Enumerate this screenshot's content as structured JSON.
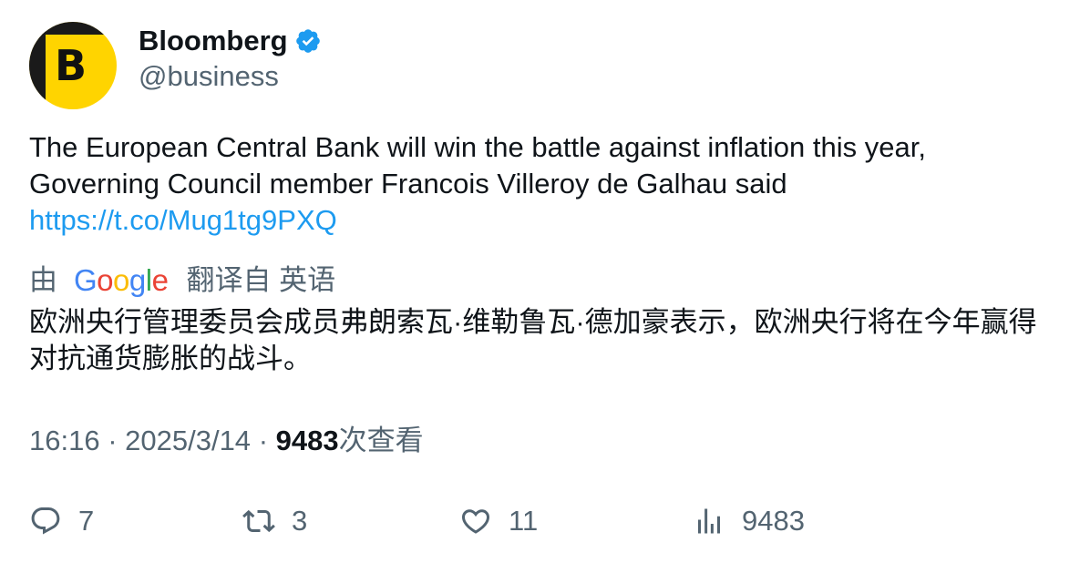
{
  "author": {
    "display_name": "Bloomberg",
    "handle": "@business",
    "avatar_letter": "B",
    "verified": true
  },
  "tweet": {
    "text_line1": "The European Central Bank will win the battle against inflation this year,",
    "text_line2": "Governing Council member Francois Villeroy de Galhau said",
    "link": "https://t.co/Mug1tg9PXQ"
  },
  "translation": {
    "prefix": "由",
    "google_letters": [
      "G",
      "o",
      "o",
      "g",
      "l",
      "e"
    ],
    "suffix": "翻译自 英语",
    "text": "欧洲央行管理委员会成员弗朗索瓦·维勒鲁瓦·德加豪表示，欧洲央行将在今年赢得对抗通货膨胀的战斗。"
  },
  "meta": {
    "time": "16:16",
    "separator": "·",
    "date": "2025/3/14",
    "views_count": "9483",
    "views_label": "次查看"
  },
  "actions": {
    "replies": "7",
    "retweets": "3",
    "likes": "11",
    "views": "9483"
  },
  "colors": {
    "text_primary": "#0f1419",
    "text_secondary": "#536471",
    "link": "#1d9bf0",
    "verified": "#1d9bf0",
    "avatar_bg": "#ffd400"
  },
  "icons": {
    "reply": "reply-icon",
    "retweet": "retweet-icon",
    "like": "heart-icon",
    "views": "views-chart-icon",
    "verified": "verified-badge-icon"
  }
}
